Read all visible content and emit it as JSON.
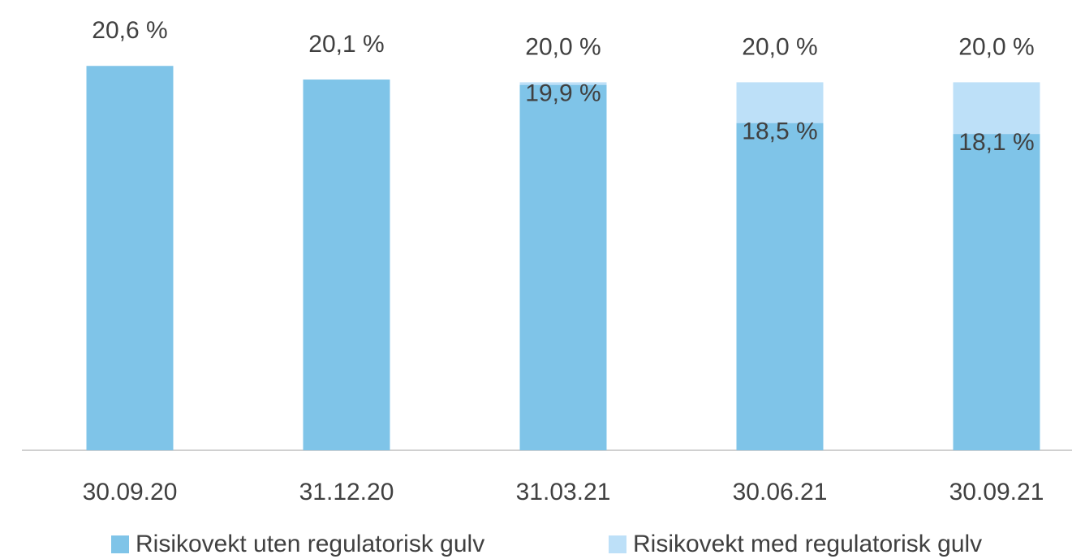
{
  "chart_data": {
    "type": "bar",
    "categories": [
      "30.09.20",
      "31.12.20",
      "31.03.21",
      "30.06.21",
      "30.09.21"
    ],
    "series": [
      {
        "name": "Risikovekt uten regulatorisk gulv",
        "color": "#7fc4e8",
        "values": [
          20.6,
          20.1,
          19.9,
          18.5,
          18.1
        ],
        "value_labels": [
          "20,6 %",
          "20,1 %",
          "19,9 %",
          "18,5 %",
          "18,1 %"
        ]
      },
      {
        "name": "Risikovekt med regulatorisk gulv",
        "color": "#bde0f8",
        "values": [
          null,
          null,
          20.0,
          20.0,
          20.0
        ],
        "value_labels": [
          null,
          null,
          "20,0 %",
          "20,0 %",
          "20,0 %"
        ]
      }
    ],
    "ylim": [
      6.5,
      21.5
    ]
  }
}
